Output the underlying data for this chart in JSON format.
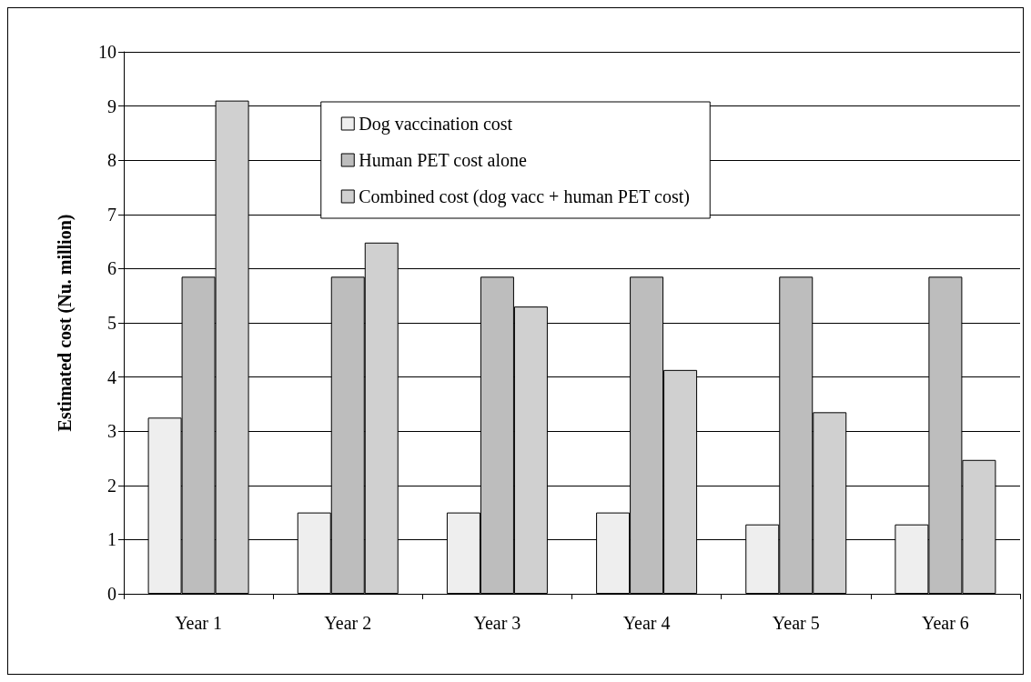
{
  "chart_data": {
    "type": "bar",
    "ylabel": "Estimated cost (Nu. million)",
    "categories": [
      "Year 1",
      "Year 2",
      "Year 3",
      "Year 4",
      "Year 5",
      "Year 6"
    ],
    "series": [
      {
        "name": "Dog vaccination cost",
        "color": "#eeeeee",
        "values": [
          3.25,
          1.5,
          1.5,
          1.5,
          1.28,
          1.28
        ]
      },
      {
        "name": "Human PET cost alone",
        "color": "#bdbdbd",
        "values": [
          5.85,
          5.85,
          5.85,
          5.85,
          5.85,
          5.85
        ]
      },
      {
        "name": "Combined cost (dog vacc + human PET cost)",
        "color": "#d0d0d0",
        "values": [
          9.1,
          6.48,
          5.3,
          4.13,
          3.35,
          2.47
        ]
      }
    ],
    "ylim": [
      0,
      10
    ],
    "yticks": [
      0,
      1,
      2,
      3,
      4,
      5,
      6,
      7,
      8,
      9,
      10
    ],
    "grid": "y",
    "legend": "top"
  }
}
